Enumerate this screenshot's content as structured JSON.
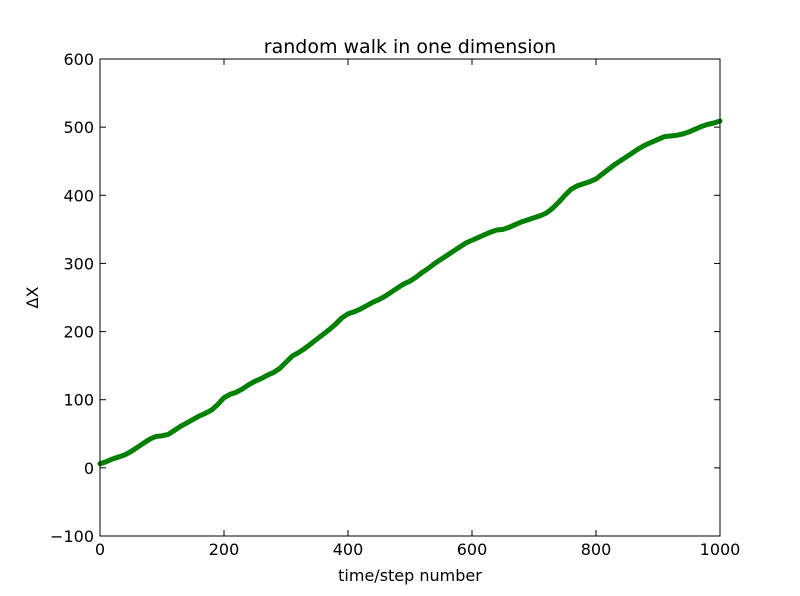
{
  "chart_data": {
    "type": "line",
    "title": "random walk in one dimension",
    "xlabel": "time/step number",
    "ylabel": "ΔX",
    "xlim": [
      0,
      1000
    ],
    "ylim": [
      -100,
      600
    ],
    "x_ticks": [
      0,
      200,
      400,
      600,
      800,
      1000
    ],
    "y_ticks": [
      -100,
      0,
      100,
      200,
      300,
      400,
      500,
      600
    ],
    "x_tick_labels": [
      "0",
      "200",
      "400",
      "600",
      "800",
      "1000"
    ],
    "y_tick_labels": [
      "−100",
      "0",
      "100",
      "200",
      "300",
      "400",
      "500",
      "600"
    ],
    "grid": false,
    "series": [
      {
        "color": "#008000",
        "x": [
          0,
          10,
          20,
          30,
          40,
          50,
          60,
          70,
          80,
          90,
          100,
          110,
          120,
          130,
          140,
          150,
          160,
          170,
          180,
          190,
          200,
          210,
          220,
          230,
          240,
          250,
          260,
          270,
          280,
          290,
          300,
          310,
          320,
          330,
          340,
          350,
          360,
          370,
          380,
          390,
          400,
          410,
          420,
          430,
          440,
          450,
          460,
          470,
          480,
          490,
          500,
          510,
          520,
          530,
          540,
          550,
          560,
          570,
          580,
          590,
          600,
          610,
          620,
          630,
          640,
          650,
          660,
          670,
          680,
          690,
          700,
          710,
          720,
          730,
          740,
          750,
          760,
          770,
          780,
          790,
          800,
          810,
          820,
          830,
          840,
          850,
          860,
          870,
          880,
          890,
          900,
          910,
          920,
          930,
          940,
          950,
          960,
          970,
          980,
          990,
          1000
        ],
        "y": [
          6,
          9,
          13,
          16,
          19,
          24,
          30,
          36,
          42,
          46,
          47,
          49,
          55,
          61,
          66,
          71,
          76,
          80,
          85,
          93,
          103,
          108,
          111,
          116,
          122,
          127,
          131,
          136,
          140,
          146,
          155,
          164,
          169,
          175,
          182,
          189,
          196,
          203,
          211,
          220,
          226,
          229,
          233,
          238,
          243,
          247,
          252,
          258,
          264,
          270,
          274,
          280,
          287,
          293,
          300,
          306,
          312,
          318,
          324,
          330,
          334,
          338,
          342,
          346,
          349,
          350,
          353,
          357,
          361,
          364,
          367,
          370,
          374,
          381,
          390,
          400,
          409,
          414,
          417,
          420,
          424,
          431,
          438,
          445,
          451,
          457,
          463,
          469,
          474,
          478,
          482,
          486,
          487,
          488,
          490,
          493,
          497,
          501,
          504,
          506,
          509
        ]
      }
    ]
  }
}
